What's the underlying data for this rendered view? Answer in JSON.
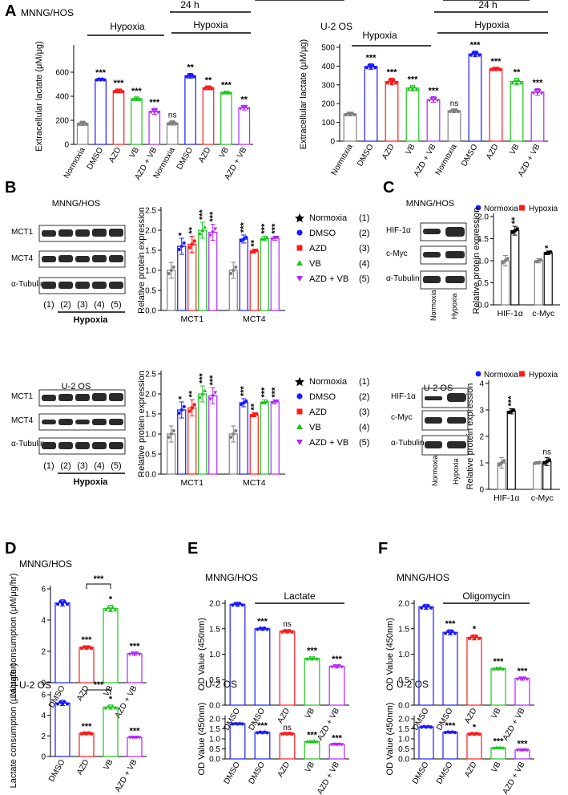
{
  "colors": {
    "Normoxia": "#808080",
    "DMSO": "#1a1aff",
    "AZD": "#ff1a1a",
    "VB": "#1ec41e",
    "AZD + VB": "#b026ff",
    "ns": "#000000"
  },
  "panel_a": {
    "letter": "A",
    "subpanels": [
      {
        "cell_line": "MNNG/HOS",
        "ylabel": "Extracellular lactate (μM/μg)",
        "hypoxia_label": "Hypoxia",
        "time_label": "24 h"
      },
      {
        "cell_line": "U-2 OS",
        "ylabel": "Extracellular lactate (μM/μg)",
        "hypoxia_label": "Hypoxia",
        "time_label": "24 h"
      }
    ]
  },
  "panel_b": {
    "letter": "B",
    "blots": [
      {
        "cell_line": "MNNG/HOS",
        "rows": [
          "MCT1",
          "MCT4",
          "α-Tubulin"
        ],
        "lanes": [
          "(1)",
          "(2)",
          "(3)",
          "(4)",
          "(5)"
        ],
        "group_label": "Hypoxia"
      },
      {
        "cell_line": "U-2 OS",
        "rows": [
          "MCT1",
          "MCT4",
          "α-Tubulin"
        ],
        "lanes": [
          "(1)",
          "(2)",
          "(3)",
          "(4)",
          "(5)"
        ],
        "group_label": "Hypoxia"
      }
    ],
    "legend": [
      {
        "label": "Normoxia",
        "num": "(1)"
      },
      {
        "label": "DMSO",
        "num": "(2)"
      },
      {
        "label": "AZD",
        "num": "(3)"
      },
      {
        "label": "VB",
        "num": "(4)"
      },
      {
        "label": "AZD + VB",
        "num": "(5)"
      }
    ]
  },
  "panel_c": {
    "letter": "C",
    "blots": [
      {
        "cell_line": "MNNG/HOS",
        "rows": [
          "HIF-1α",
          "c-Myc",
          "α-Tubulin"
        ],
        "lanes": [
          "Normoxia",
          "Hypoxia"
        ]
      },
      {
        "cell_line": "U-2 OS",
        "rows": [
          "HIF-1α",
          "c-Myc",
          "α-Tubulin"
        ],
        "lanes": [
          "Normoxia",
          "Hypoxia"
        ]
      }
    ]
  },
  "panel_d": {
    "letter": "D",
    "titles": [
      "MNNG/HOS",
      "U-2 OS"
    ]
  },
  "panel_e": {
    "letter": "E",
    "titles": [
      "MNNG/HOS",
      "U-2 OS"
    ],
    "treatment": "Lactate"
  },
  "panel_f": {
    "letter": "F",
    "titles": [
      "MNNG/HOS",
      "U-2 OS"
    ],
    "treatment": "Oligomycin"
  },
  "chart_data": [
    {
      "id": "A1",
      "type": "bar",
      "title": "MNNG/HOS",
      "ylabel": "Extracellular lactate (μM/μg)",
      "ylim": [
        0,
        800
      ],
      "yticks": [
        0,
        200,
        400,
        600
      ],
      "categories": [
        "Normoxia",
        "DMSO",
        "AZD",
        "VB",
        "AZD + VB",
        "Normoxia",
        "DMSO",
        "AZD",
        "VB",
        "AZD + VB"
      ],
      "groups": [
        "Normoxia",
        "DMSO",
        "AZD",
        "VB",
        "AZD + VB",
        "Normoxia",
        "DMSO",
        "AZD",
        "VB",
        "AZD + VB"
      ],
      "values": [
        175,
        540,
        445,
        380,
        275,
        178,
        570,
        470,
        432,
        305
      ],
      "errors": [
        18,
        8,
        15,
        15,
        25,
        18,
        20,
        15,
        10,
        20
      ],
      "sig": [
        "",
        "***",
        "***",
        "***",
        "***",
        "ns",
        "**",
        "**",
        "***",
        "**"
      ]
    },
    {
      "id": "A2",
      "type": "bar",
      "title": "U-2 OS",
      "ylabel": "Extracellular lactate (μM/μg)",
      "ylim": [
        0,
        500
      ],
      "yticks": [
        0,
        100,
        200,
        300,
        400,
        500
      ],
      "categories": [
        "Normoxia",
        "DMSO",
        "AZD",
        "VB",
        "AZD + VB",
        "Normoxia",
        "DMSO",
        "AZD",
        "VB",
        "AZD + VB"
      ],
      "groups": [
        "Normoxia",
        "DMSO",
        "AZD",
        "VB",
        "AZD + VB",
        "Normoxia",
        "DMSO",
        "AZD",
        "VB",
        "AZD + VB"
      ],
      "values": [
        145,
        398,
        318,
        283,
        222,
        162,
        465,
        385,
        318,
        262
      ],
      "errors": [
        10,
        15,
        18,
        15,
        15,
        10,
        15,
        8,
        18,
        18
      ],
      "sig": [
        "",
        "***",
        "***",
        "***",
        "***",
        "ns",
        "***",
        "***",
        "**",
        "***"
      ]
    },
    {
      "id": "B1",
      "type": "bar",
      "ylabel": "Relative protein expression",
      "ylim": [
        0,
        2.5
      ],
      "yticks": [
        0.0,
        0.5,
        1.0,
        1.5,
        2.0,
        2.5
      ],
      "categories": [
        "MCT1",
        "MCT4"
      ],
      "series": [
        {
          "name": "Normoxia",
          "values": [
            1.0,
            1.0
          ],
          "errors": [
            0.2,
            0.2
          ],
          "sig": [
            "",
            ""
          ]
        },
        {
          "name": "DMSO",
          "values": [
            1.6,
            1.78
          ],
          "errors": [
            0.2,
            0.1
          ],
          "sig": [
            "*",
            "***"
          ]
        },
        {
          "name": "AZD",
          "values": [
            1.65,
            1.48
          ],
          "errors": [
            0.2,
            0.05
          ],
          "sig": [
            "**",
            "**"
          ]
        },
        {
          "name": "VB",
          "values": [
            2.0,
            1.8
          ],
          "errors": [
            0.2,
            0.05
          ],
          "sig": [
            "***",
            "***"
          ]
        },
        {
          "name": "AZD + VB",
          "values": [
            1.95,
            1.8
          ],
          "errors": [
            0.2,
            0.05
          ],
          "sig": [
            "***",
            "***"
          ]
        }
      ]
    },
    {
      "id": "B2",
      "type": "bar",
      "ylabel": "Relative protein expression",
      "ylim": [
        0,
        2.5
      ],
      "yticks": [
        0.0,
        0.5,
        1.0,
        1.5,
        2.0,
        2.5
      ],
      "categories": [
        "MCT1",
        "MCT4"
      ],
      "series": [
        {
          "name": "Normoxia",
          "values": [
            1.0,
            1.0
          ],
          "errors": [
            0.2,
            0.2
          ],
          "sig": [
            "",
            ""
          ]
        },
        {
          "name": "DMSO",
          "values": [
            1.6,
            1.78
          ],
          "errors": [
            0.2,
            0.1
          ],
          "sig": [
            "*",
            "***"
          ]
        },
        {
          "name": "AZD",
          "values": [
            1.65,
            1.48
          ],
          "errors": [
            0.2,
            0.05
          ],
          "sig": [
            "**",
            "**"
          ]
        },
        {
          "name": "VB",
          "values": [
            2.0,
            1.8
          ],
          "errors": [
            0.2,
            0.05
          ],
          "sig": [
            "***",
            "***"
          ]
        },
        {
          "name": "AZD + VB",
          "values": [
            1.95,
            1.8
          ],
          "errors": [
            0.2,
            0.05
          ],
          "sig": [
            "***",
            "***"
          ]
        }
      ]
    },
    {
      "id": "C1",
      "type": "bar",
      "ylabel": "Relative protein expression",
      "ylim": [
        0,
        2.0
      ],
      "yticks": [
        0.0,
        0.5,
        1.0,
        1.5,
        2.0
      ],
      "categories": [
        "HIF-1α",
        "c-Myc"
      ],
      "series": [
        {
          "name": "Normoxia",
          "values": [
            1.0,
            1.0
          ],
          "errors": [
            0.12,
            0.05
          ],
          "sig": [
            "",
            ""
          ]
        },
        {
          "name": "Hypoxia",
          "values": [
            1.68,
            1.18
          ],
          "errors": [
            0.1,
            0.04
          ],
          "sig": [
            "**",
            "*"
          ]
        }
      ]
    },
    {
      "id": "C2",
      "type": "bar",
      "ylabel": "Relative protein expression",
      "ylim": [
        0,
        4
      ],
      "yticks": [
        0,
        1,
        2,
        3,
        4
      ],
      "categories": [
        "HIF-1α",
        "c-Myc"
      ],
      "series": [
        {
          "name": "Normoxia",
          "values": [
            1.0,
            1.0
          ],
          "errors": [
            0.2,
            0.05
          ],
          "sig": [
            "",
            ""
          ]
        },
        {
          "name": "Hypoxia",
          "values": [
            2.95,
            1.05
          ],
          "errors": [
            0.1,
            0.15
          ],
          "sig": [
            "***",
            "ns"
          ]
        }
      ]
    },
    {
      "id": "D1",
      "type": "bar",
      "title": "MNNG/HOS",
      "ylabel": "Lactate consumption (μM/μg/hr)",
      "ylim": [
        0,
        6
      ],
      "yticks": [
        0,
        2,
        4,
        6
      ],
      "categories": [
        "DMSO",
        "AZD",
        "VB",
        "AZD + VB"
      ],
      "groups": [
        "DMSO",
        "AZD",
        "VB",
        "AZD + VB"
      ],
      "values": [
        5.1,
        2.25,
        4.75,
        1.85
      ],
      "errors": [
        0.2,
        0.1,
        0.2,
        0.1
      ],
      "sig": [
        "",
        "***",
        "*",
        "***"
      ],
      "bracket": {
        "from": 1,
        "to": 2,
        "label": "***"
      }
    },
    {
      "id": "D2",
      "type": "bar",
      "title": "U-2 OS",
      "ylabel": "Lactate consumption (μM/μg/hr)",
      "ylim": [
        0,
        6
      ],
      "yticks": [
        0,
        2,
        4,
        6
      ],
      "categories": [
        "DMSO",
        "AZD",
        "VB",
        "AZD + VB"
      ],
      "groups": [
        "DMSO",
        "AZD",
        "VB",
        "AZD + VB"
      ],
      "values": [
        5.2,
        2.25,
        4.8,
        1.85
      ],
      "errors": [
        0.25,
        0.1,
        0.2,
        0.05
      ],
      "sig": [
        "",
        "***",
        "*",
        "***"
      ],
      "bracket": {
        "from": 1,
        "to": 2,
        "label": "***"
      }
    },
    {
      "id": "E1",
      "type": "bar",
      "title": "MNNG/HOS",
      "ylabel": "OD Value (450nm)",
      "ylim": [
        0,
        2.0
      ],
      "yticks": [
        0.0,
        0.5,
        1.0,
        1.5,
        2.0
      ],
      "categories": [
        "DMSO",
        "DMSO",
        "AZD",
        "VB",
        "AZD + VB"
      ],
      "groups": [
        "DMSO",
        "DMSO",
        "AZD",
        "VB",
        "AZD + VB"
      ],
      "values": [
        1.98,
        1.5,
        1.45,
        0.92,
        0.76
      ],
      "errors": [
        0.04,
        0.03,
        0.03,
        0.03,
        0.03
      ],
      "sig": [
        "",
        "***",
        "ns",
        "***",
        "***"
      ],
      "treatment_bar": {
        "label": "Lactate",
        "from": 1,
        "to": 4
      }
    },
    {
      "id": "E2",
      "type": "bar",
      "title": "U-2 OS",
      "ylabel": "OD Value (450nm)",
      "ylim": [
        0,
        2.0
      ],
      "yticks": [
        0.0,
        0.5,
        1.0,
        1.5,
        2.0
      ],
      "categories": [
        "DMSO",
        "DMSO",
        "AZD",
        "VB",
        "AZD + VB"
      ],
      "groups": [
        "DMSO",
        "DMSO",
        "AZD",
        "VB",
        "AZD + VB"
      ],
      "values": [
        1.75,
        1.32,
        1.26,
        0.87,
        0.72
      ],
      "errors": [
        0.02,
        0.04,
        0.03,
        0.03,
        0.03
      ],
      "sig": [
        "",
        "***",
        "ns",
        "***",
        "***"
      ],
      "treatment_bar": {
        "label": "Lactate",
        "from": 1,
        "to": 4
      }
    },
    {
      "id": "F1",
      "type": "bar",
      "title": "MNNG/HOS",
      "ylabel": "OD Value (450nm)",
      "ylim": [
        0,
        2.0
      ],
      "yticks": [
        0.0,
        0.5,
        1.0,
        1.5,
        2.0
      ],
      "categories": [
        "DMSO",
        "DMSO",
        "AZD",
        "VB",
        "AZD + VB"
      ],
      "groups": [
        "DMSO",
        "DMSO",
        "AZD",
        "VB",
        "AZD + VB"
      ],
      "values": [
        1.93,
        1.43,
        1.33,
        0.72,
        0.52
      ],
      "errors": [
        0.05,
        0.05,
        0.05,
        0.02,
        0.03
      ],
      "sig": [
        "",
        "***",
        "*",
        "***",
        "***"
      ],
      "treatment_bar": {
        "label": "Oligomycin",
        "from": 1,
        "to": 4
      }
    },
    {
      "id": "F2",
      "type": "bar",
      "title": "U-2 OS",
      "ylabel": "OD Value (450nm)",
      "ylim": [
        0,
        2.0
      ],
      "yticks": [
        0.0,
        0.5,
        1.0,
        1.5,
        2.0
      ],
      "categories": [
        "DMSO",
        "DMSO",
        "AZD",
        "VB",
        "AZD + VB"
      ],
      "groups": [
        "DMSO",
        "DMSO",
        "AZD",
        "VB",
        "AZD + VB"
      ],
      "values": [
        1.6,
        1.33,
        1.25,
        0.56,
        0.44
      ],
      "errors": [
        0.04,
        0.03,
        0.04,
        0.02,
        0.03
      ],
      "sig": [
        "",
        "***",
        "*",
        "***",
        "***"
      ],
      "treatment_bar": {
        "label": "Oligomycin",
        "from": 1,
        "to": 4
      }
    }
  ]
}
